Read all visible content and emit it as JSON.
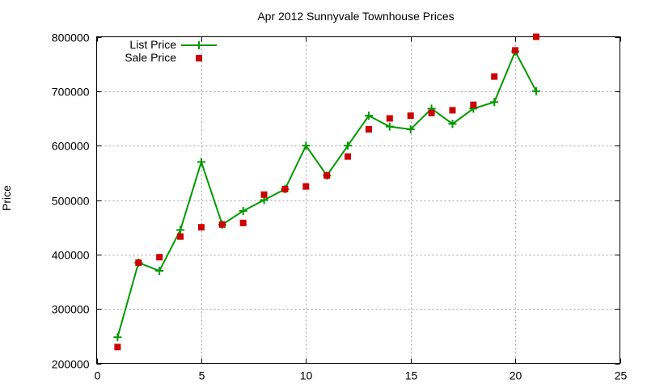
{
  "chart_data": {
    "type": "line",
    "title": "Apr 2012 Sunnyvale Townhouse Prices",
    "xlabel": "",
    "ylabel": "Price",
    "xlim": [
      0,
      25
    ],
    "ylim": [
      200000,
      800000
    ],
    "x_ticks": [
      "0",
      "5",
      "10",
      "15",
      "20",
      "25"
    ],
    "y_ticks": [
      "200000",
      "300000",
      "400000",
      "500000",
      "600000",
      "700000",
      "800000"
    ],
    "grid": true,
    "legend_position": "top-left",
    "x": [
      1,
      2,
      3,
      4,
      5,
      6,
      7,
      8,
      9,
      10,
      11,
      12,
      13,
      14,
      15,
      16,
      17,
      18,
      19,
      20,
      21
    ],
    "series": [
      {
        "name": "List Price",
        "style": "linespoints",
        "marker": "plus",
        "color": "#009900",
        "values": [
          248000,
          385000,
          370000,
          445000,
          570000,
          455000,
          480000,
          500000,
          520000,
          600000,
          545000,
          600000,
          655000,
          635000,
          630000,
          668000,
          640000,
          668000,
          680000,
          773000,
          700000
        ]
      },
      {
        "name": "Sale Price",
        "style": "points",
        "marker": "square",
        "color": "#cc0000",
        "values": [
          230000,
          385000,
          395000,
          433000,
          450000,
          455000,
          458000,
          510000,
          520000,
          525000,
          545000,
          580000,
          630000,
          650000,
          655000,
          660000,
          665000,
          675000,
          727000,
          775000,
          800000
        ]
      }
    ]
  }
}
